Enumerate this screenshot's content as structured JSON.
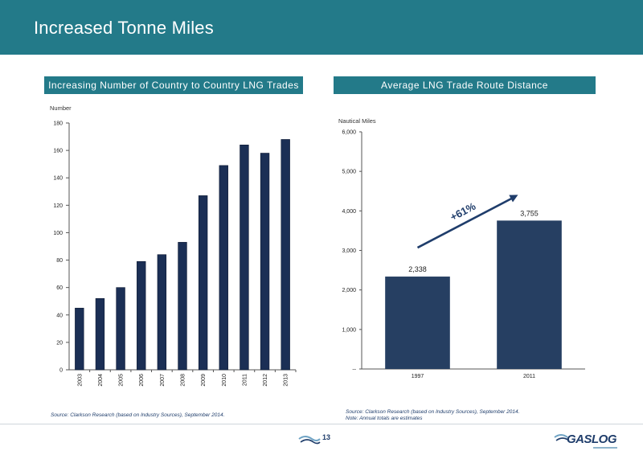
{
  "page": {
    "title": "Increased Tonne Miles",
    "page_number": "13",
    "logo_text": "GASLOG"
  },
  "left_panel": {
    "header": "Increasing Number of Country to Country LNG Trades",
    "source": "Source: Clarkson Research (based on Industry Sources), September 2014."
  },
  "right_panel": {
    "header": "Average LNG Trade Route Distance",
    "source_line1": "Source: Clarkson Research (based on Industry Sources), September 2014.",
    "source_line2": "Note: Annual totals are estimates",
    "growth_label": "+61%"
  },
  "colors": {
    "banner": "#237a89",
    "bar_left": "#1b2f55",
    "bar_right": "#263f62",
    "arrow": "#1f3d6b"
  },
  "chart_data": [
    {
      "type": "bar",
      "title": "Increasing Number of Country to Country LNG Trades",
      "ylabel": "Number",
      "xlabel": "",
      "categories": [
        "2003",
        "2004",
        "2005",
        "2006",
        "2007",
        "2008",
        "2009",
        "2010",
        "2011",
        "2012",
        "2013"
      ],
      "values": [
        45,
        52,
        60,
        79,
        84,
        93,
        127,
        149,
        164,
        158,
        168
      ],
      "ylim": [
        0,
        180
      ],
      "yticks": [
        0,
        20,
        40,
        60,
        80,
        100,
        120,
        140,
        160,
        180
      ],
      "ytick_labels": [
        "0",
        "20",
        "40",
        "60",
        "80",
        "100",
        "120",
        "140",
        "160",
        "180"
      ],
      "grid": false
    },
    {
      "type": "bar",
      "title": "Average LNG Trade Route Distance",
      "ylabel": "Nautical Miles",
      "xlabel": "",
      "categories": [
        "1997",
        "2011"
      ],
      "values": [
        2338,
        3755
      ],
      "data_labels": [
        "2,338",
        "3,755"
      ],
      "ylim": [
        0,
        6000
      ],
      "yticks": [
        0,
        1000,
        2000,
        3000,
        4000,
        5000,
        6000
      ],
      "ytick_labels": [
        "--",
        "1,000",
        "2,000",
        "3,000",
        "4,000",
        "5,000",
        "6,000"
      ],
      "annotation": "+61%",
      "grid": false
    }
  ]
}
